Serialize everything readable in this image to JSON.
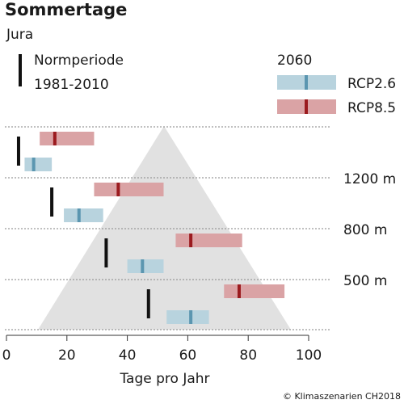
{
  "title": "Sommertage",
  "subtitle": "Jura",
  "legend": {
    "baseline_label_line1": "Normperiode",
    "baseline_label_line2": "1981-2010",
    "period": "2060",
    "rcp26": "RCP2.6",
    "rcp85": "RCP8.5"
  },
  "colors": {
    "rcp26_box": "#b8d3de",
    "rcp26_median": "#5b96b0",
    "rcp85_box": "#daa3a5",
    "rcp85_median": "#9b1b1f",
    "baseline": "#111111",
    "mountain": "#e1e1e1",
    "grid": "#9a9a9a"
  },
  "footer": "© Klimaszenarien CH2018",
  "chart_data": {
    "type": "range",
    "xlabel": "Tage pro Jahr",
    "xlim": [
      0,
      100
    ],
    "xticks": [
      0,
      20,
      40,
      60,
      80,
      100
    ],
    "elevation_labels": [
      "1200 m",
      "800 m",
      "500 m"
    ],
    "bands": [
      {
        "baseline": 4,
        "rcp26": {
          "low": 6,
          "median": 9,
          "high": 15
        },
        "rcp85": {
          "low": 11,
          "median": 16,
          "high": 29
        }
      },
      {
        "baseline": 15,
        "rcp26": {
          "low": 19,
          "median": 24,
          "high": 32
        },
        "rcp85": {
          "low": 29,
          "median": 37,
          "high": 52
        }
      },
      {
        "baseline": 33,
        "rcp26": {
          "low": 40,
          "median": 45,
          "high": 52
        },
        "rcp85": {
          "low": 56,
          "median": 61,
          "high": 78
        }
      },
      {
        "baseline": 47,
        "rcp26": {
          "low": 53,
          "median": 61,
          "high": 67
        },
        "rcp85": {
          "low": 72,
          "median": 77,
          "high": 92
        }
      }
    ]
  }
}
